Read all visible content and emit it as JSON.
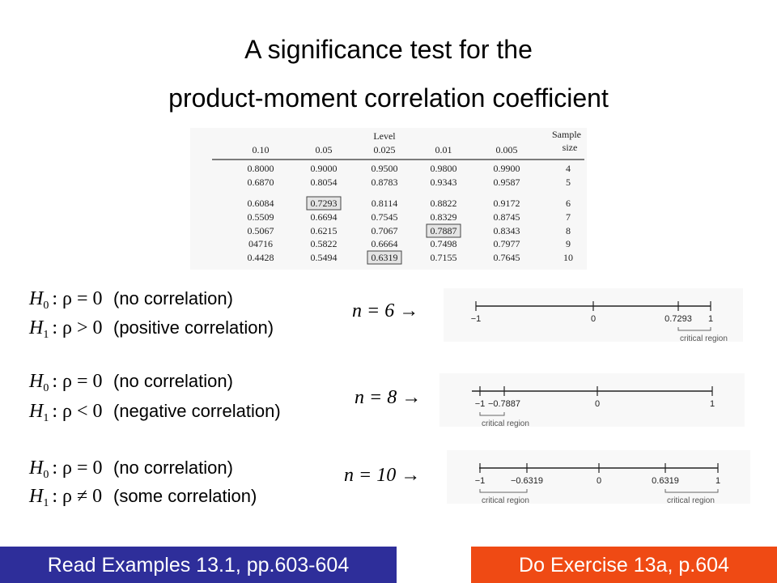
{
  "title": {
    "lines": [
      "A significance test for the",
      "product-moment correlation coefficient"
    ]
  },
  "table": {
    "level_label": "Level",
    "columns": [
      "0.10",
      "0.05",
      "0.025",
      "0.01",
      "0.005"
    ],
    "sample_size_label": [
      "Sample",
      "size"
    ],
    "rows": [
      {
        "values": [
          "0.8000",
          "0.9000",
          "0.9500",
          "0.9800",
          "0.9900"
        ],
        "n": "4"
      },
      {
        "values": [
          "0.6870",
          "0.8054",
          "0.8783",
          "0.9343",
          "0.9587"
        ],
        "n": "5"
      },
      {
        "values": [
          "0.6084",
          {
            "text": "0.7293",
            "boxed": true
          },
          "0.8114",
          "0.8822",
          "0.9172"
        ],
        "n": "6"
      },
      {
        "values": [
          "0.5509",
          "0.6694",
          "0.7545",
          "0.8329",
          "0.8745"
        ],
        "n": "7"
      },
      {
        "values": [
          "0.5067",
          "0.6215",
          "0.7067",
          {
            "text": "0.7887",
            "boxed": true
          },
          "0.8343"
        ],
        "n": "8"
      },
      {
        "values": [
          "04716",
          "0.5822",
          "0.6664",
          "0.7498",
          "0.7977"
        ],
        "n": "9"
      },
      {
        "values": [
          "0.4428",
          "0.5494",
          {
            "text": "0.6319",
            "boxed": true
          },
          "0.7155",
          "0.7645"
        ],
        "n": "10"
      }
    ]
  },
  "tests": [
    {
      "h0": {
        "symbol": "H",
        "sub": "0",
        "relation": ": ρ = 0",
        "note": "(no correlation)"
      },
      "h1": {
        "symbol": "H",
        "sub": "1",
        "relation": ": ρ > 0",
        "note": "(positive correlation)"
      },
      "n_label": "n = 6 →",
      "number_line": {
        "labels": [
          "−1",
          "0",
          "0.7293",
          "1"
        ],
        "regions": [
          "critical region"
        ]
      }
    },
    {
      "h0": {
        "symbol": "H",
        "sub": "0",
        "relation": ": ρ = 0",
        "note": "(no correlation)"
      },
      "h1": {
        "symbol": "H",
        "sub": "1",
        "relation": ": ρ < 0",
        "note": "(negative correlation)"
      },
      "n_label": "n = 8 →",
      "number_line": {
        "labels": [
          "−1",
          "−0.7887",
          "0",
          "1"
        ],
        "regions": [
          "critical region"
        ]
      }
    },
    {
      "h0": {
        "symbol": "H",
        "sub": "0",
        "relation": ": ρ = 0",
        "note": "(no correlation)"
      },
      "h1": {
        "symbol": "H",
        "sub": "1",
        "relation": ": ρ ≠ 0",
        "note": "(some correlation)"
      },
      "n_label": "n = 10 →",
      "number_line": {
        "labels": [
          "−1",
          "−0.6319",
          "0",
          "0.6319",
          "1"
        ],
        "regions": [
          "critical region",
          "critical region"
        ]
      }
    }
  ],
  "footer": {
    "left": "Read Examples 13.1, pp.603-604",
    "right": "Do Exercise 13a, p.604"
  }
}
